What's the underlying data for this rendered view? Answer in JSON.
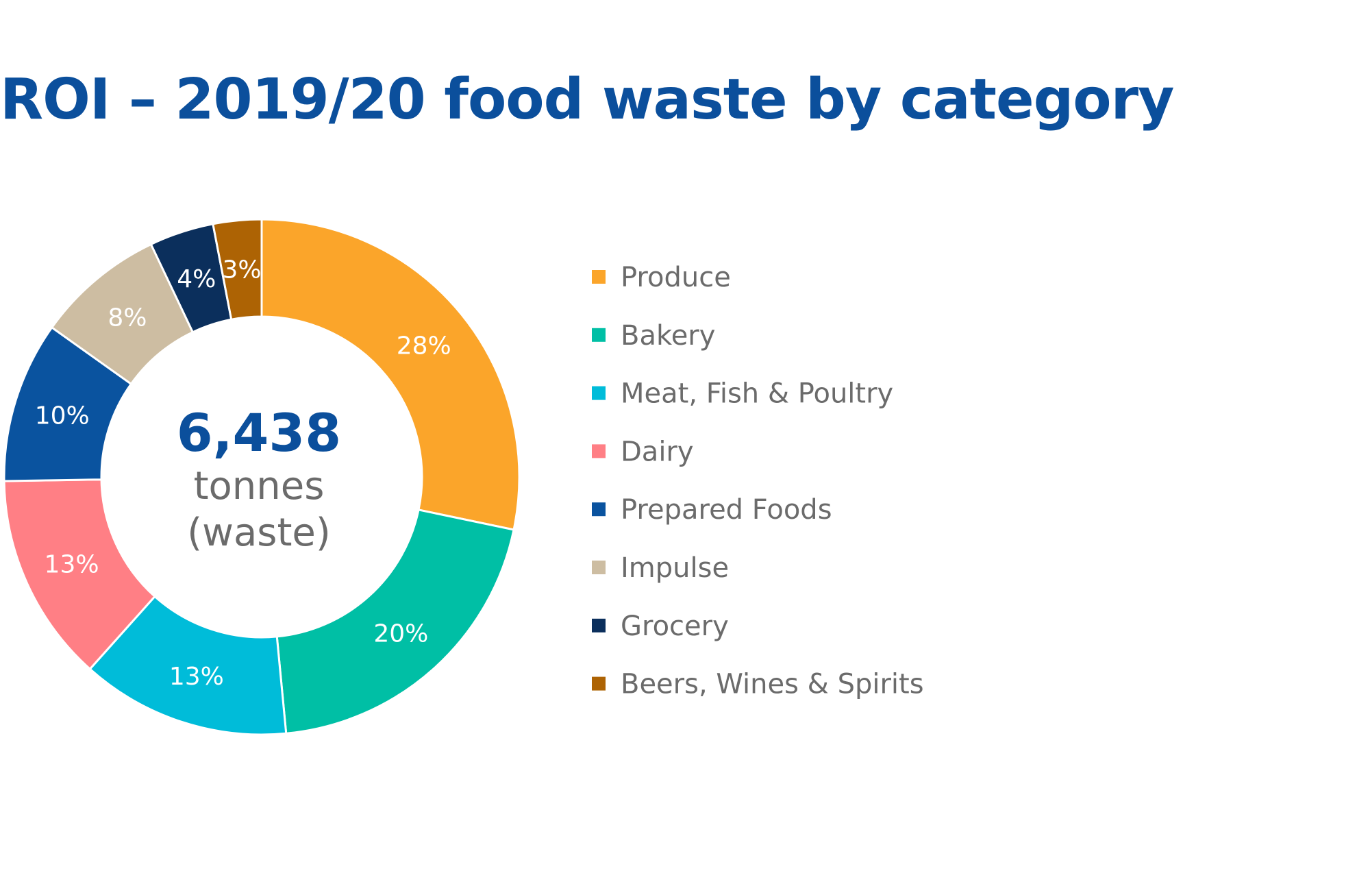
{
  "title": "ROI – 2019/20 food waste by category",
  "center": {
    "value": "6,438",
    "line1": "tonnes",
    "line2": "(waste)"
  },
  "chart_data": {
    "type": "pie",
    "donut": true,
    "title": "ROI – 2019/20 food waste by category",
    "legend_position": "right",
    "categories": [
      "Produce",
      "Bakery",
      "Meat, Fish & Poultry",
      "Dairy",
      "Prepared Foods",
      "Impulse",
      "Grocery",
      "Beers, Wines & Spirits"
    ],
    "values": [
      28,
      20,
      13,
      13,
      10,
      8,
      4,
      3
    ],
    "labels": [
      "28%",
      "20%",
      "13%",
      "13%",
      "10%",
      "8%",
      "4%",
      "3%"
    ],
    "colors": [
      "#fba52a",
      "#00bfa5",
      "#00bcd9",
      "#ff7f85",
      "#0a539f",
      "#cdbda2",
      "#0b2f5c",
      "#ad6304"
    ],
    "center_total": "6,438",
    "center_unit": "tonnes (waste)"
  }
}
